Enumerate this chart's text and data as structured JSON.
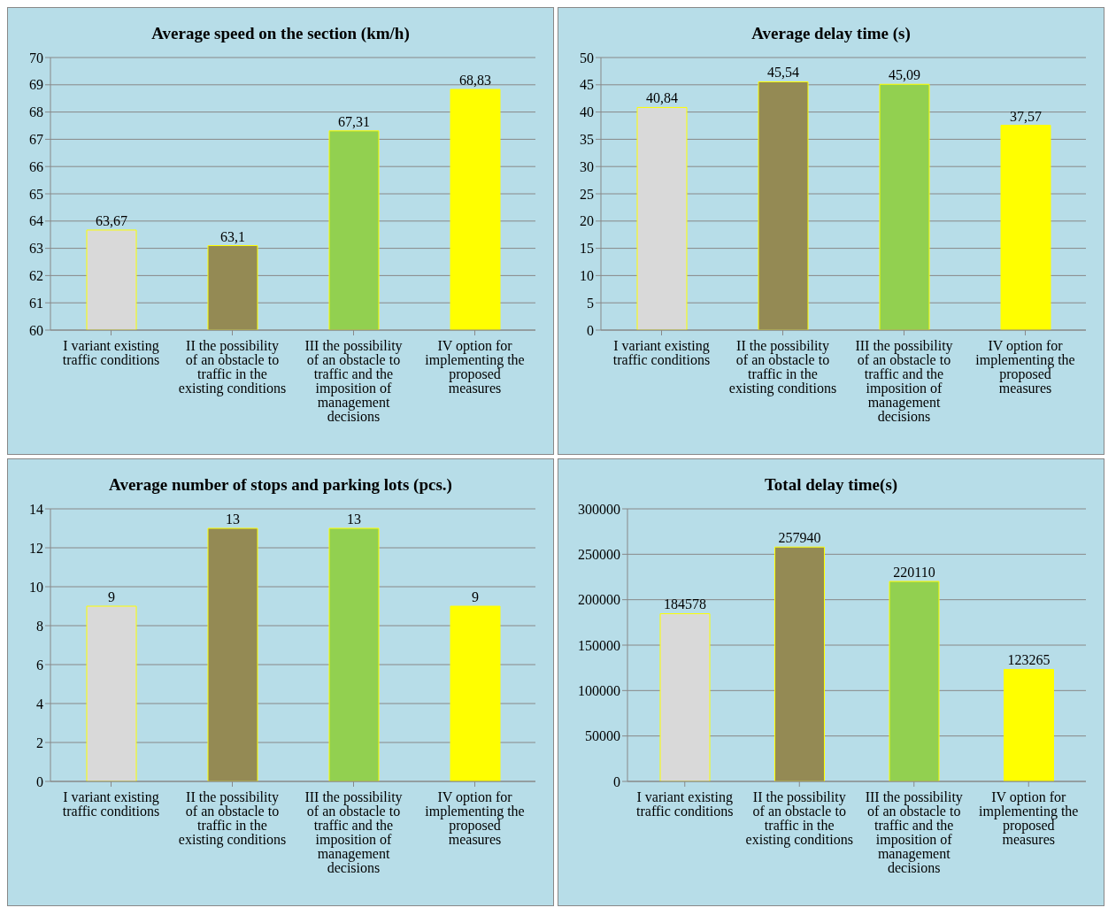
{
  "chart_data": [
    {
      "type": "bar",
      "title": "Average speed on the section (km/h)",
      "categories": [
        "I variant existing traffic conditions",
        "II the possibility of an obstacle to traffic in the existing conditions",
        "III the possibility of an obstacle to traffic and the imposition of management decisions",
        "IV option for implementing the proposed measures"
      ],
      "values": [
        63.67,
        63.1,
        67.31,
        68.83
      ],
      "value_labels": [
        "63,67",
        "63,1",
        "67,31",
        "68,83"
      ],
      "colors": [
        "#d9d9d9",
        "#948a54",
        "#92d050",
        "#ffff00"
      ],
      "ylim": [
        60,
        70
      ],
      "yticks": [
        60,
        61,
        62,
        63,
        64,
        65,
        66,
        67,
        68,
        69,
        70
      ],
      "grid": "y",
      "legend": false
    },
    {
      "type": "bar",
      "title": "Average delay time (s)",
      "categories": [
        "I variant existing traffic conditions",
        "II the possibility of an obstacle to traffic in the existing conditions",
        "III the possibility of an obstacle to traffic and the imposition of management decisions",
        "IV option for implementing the proposed measures"
      ],
      "values": [
        40.84,
        45.54,
        45.09,
        37.57
      ],
      "value_labels": [
        "40,84",
        "45,54",
        "45,09",
        "37,57"
      ],
      "colors": [
        "#d9d9d9",
        "#948a54",
        "#92d050",
        "#ffff00"
      ],
      "ylim": [
        0,
        50
      ],
      "yticks": [
        0,
        5,
        10,
        15,
        20,
        25,
        30,
        35,
        40,
        45,
        50
      ],
      "grid": "y",
      "legend": false
    },
    {
      "type": "bar",
      "title": "Average number of stops and parking lots (pcs.)",
      "categories": [
        "I variant existing traffic conditions",
        "II the possibility of an obstacle to traffic in the existing conditions",
        "III the possibility of an obstacle to traffic and the imposition of management decisions",
        "IV option for implementing the proposed measures"
      ],
      "values": [
        9,
        13,
        13,
        9
      ],
      "data_labels": true,
      "colors": [
        "#d9d9d9",
        "#948a54",
        "#92d050",
        "#ffff00"
      ],
      "ylim": [
        0,
        14
      ],
      "yticks": [
        0,
        2,
        4,
        6,
        8,
        10,
        12,
        14
      ],
      "grid": "y",
      "legend": false
    },
    {
      "type": "bar",
      "title": "Total delay time(s)",
      "categories": [
        "I variant existing traffic conditions",
        "II the possibility of an obstacle to traffic in the existing conditions",
        "III the possibility of an obstacle to traffic and the imposition of management decisions",
        "IV option for implementing the proposed measures"
      ],
      "values": [
        184578,
        257940,
        220110,
        123265
      ],
      "data_labels": true,
      "colors": [
        "#d9d9d9",
        "#948a54",
        "#92d050",
        "#ffff00"
      ],
      "ylim": [
        0,
        300000
      ],
      "yticks": [
        0,
        50000,
        100000,
        150000,
        200000,
        250000,
        300000
      ],
      "grid": "y",
      "legend": false
    }
  ]
}
